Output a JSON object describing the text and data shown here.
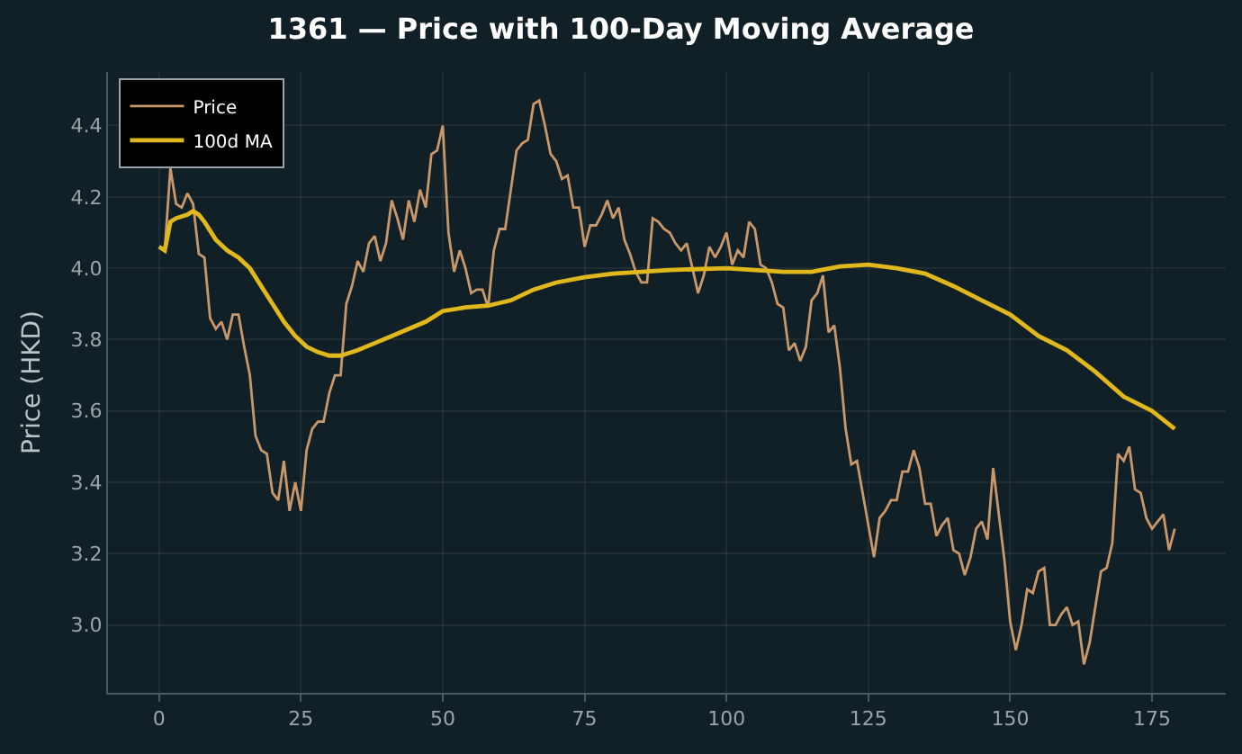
{
  "chart_data": {
    "type": "line",
    "title": "1361 — Price with 100-Day Moving Average",
    "ylabel": "Price (HKD)",
    "xlim": [
      -9,
      188
    ],
    "ylim": [
      2.81,
      4.55
    ],
    "xticks": [
      0,
      25,
      50,
      75,
      100,
      125,
      150,
      175
    ],
    "yticks": [
      {
        "value": 3.0,
        "label": "3.0"
      },
      {
        "value": 3.2,
        "label": "3.2"
      },
      {
        "value": 3.4,
        "label": "3.4"
      },
      {
        "value": 3.6,
        "label": "3.6"
      },
      {
        "value": 3.8,
        "label": "3.8"
      },
      {
        "value": 4.0,
        "label": "4.0"
      },
      {
        "value": 4.2,
        "label": "4.2"
      },
      {
        "value": 4.4,
        "label": "4.4"
      }
    ],
    "grid": true,
    "legend": "top left",
    "marker": "none",
    "line_style": "solid",
    "series": [
      {
        "name": "Price",
        "color": "#c8986a",
        "x": [
          0,
          1,
          2,
          3,
          4,
          5,
          6,
          7,
          8,
          9,
          10,
          11,
          12,
          13,
          14,
          15,
          16,
          17,
          18,
          19,
          20,
          21,
          22,
          23,
          24,
          25,
          26,
          27,
          28,
          29,
          30,
          31,
          32,
          33,
          34,
          35,
          36,
          37,
          38,
          39,
          40,
          41,
          42,
          43,
          44,
          45,
          46,
          47,
          48,
          49,
          50,
          51,
          52,
          53,
          54,
          55,
          56,
          57,
          58,
          59,
          60,
          61,
          62,
          63,
          64,
          65,
          66,
          67,
          68,
          69,
          70,
          71,
          72,
          73,
          74,
          75,
          76,
          77,
          78,
          79,
          80,
          81,
          82,
          83,
          84,
          85,
          86,
          87,
          88,
          89,
          90,
          91,
          92,
          93,
          94,
          95,
          96,
          97,
          98,
          99,
          100,
          101,
          102,
          103,
          104,
          105,
          106,
          107,
          108,
          109,
          110,
          111,
          112,
          113,
          114,
          115,
          116,
          117,
          118,
          119,
          120,
          121,
          122,
          123,
          124,
          125,
          126,
          127,
          128,
          129,
          130,
          131,
          132,
          133,
          134,
          135,
          136,
          137,
          138,
          139,
          140,
          141,
          142,
          143,
          144,
          145,
          146,
          147,
          148,
          149,
          150,
          151,
          152,
          153,
          154,
          155,
          156,
          157,
          158,
          159,
          160,
          161,
          162,
          163,
          164,
          165,
          166,
          167,
          168,
          169,
          170,
          171,
          172,
          173,
          174,
          175,
          176,
          177,
          178,
          179
        ],
        "values": [
          4.06,
          4.05,
          4.28,
          4.18,
          4.17,
          4.21,
          4.18,
          4.04,
          4.03,
          3.86,
          3.83,
          3.85,
          3.8,
          3.87,
          3.87,
          3.78,
          3.7,
          3.53,
          3.49,
          3.48,
          3.37,
          3.35,
          3.46,
          3.32,
          3.4,
          3.32,
          3.49,
          3.55,
          3.57,
          3.57,
          3.65,
          3.7,
          3.7,
          3.9,
          3.95,
          4.02,
          3.99,
          4.07,
          4.09,
          4.02,
          4.07,
          4.19,
          4.14,
          4.08,
          4.19,
          4.13,
          4.22,
          4.17,
          4.32,
          4.33,
          4.4,
          4.1,
          3.99,
          4.05,
          4.0,
          3.93,
          3.94,
          3.94,
          3.89,
          4.05,
          4.11,
          4.11,
          4.22,
          4.33,
          4.35,
          4.36,
          4.46,
          4.47,
          4.4,
          4.32,
          4.3,
          4.25,
          4.26,
          4.17,
          4.17,
          4.06,
          4.12,
          4.12,
          4.15,
          4.19,
          4.14,
          4.17,
          4.08,
          4.04,
          3.99,
          3.96,
          3.96,
          4.14,
          4.13,
          4.11,
          4.1,
          4.07,
          4.05,
          4.07,
          4.0,
          3.93,
          3.98,
          4.06,
          4.03,
          4.06,
          4.1,
          4.01,
          4.05,
          4.03,
          4.13,
          4.11,
          4.01,
          4.0,
          3.96,
          3.9,
          3.89,
          3.77,
          3.79,
          3.74,
          3.78,
          3.91,
          3.93,
          3.98,
          3.82,
          3.84,
          3.72,
          3.55,
          3.45,
          3.46,
          3.37,
          3.28,
          3.19,
          3.3,
          3.32,
          3.35,
          3.35,
          3.43,
          3.43,
          3.49,
          3.44,
          3.34,
          3.34,
          3.25,
          3.28,
          3.3,
          3.21,
          3.2,
          3.14,
          3.19,
          3.27,
          3.29,
          3.24,
          3.44,
          3.31,
          3.18,
          3.01,
          2.93,
          3.0,
          3.1,
          3.09,
          3.15,
          3.16,
          3.0,
          3.0,
          3.03,
          3.05,
          3.0,
          3.01,
          2.89,
          2.95,
          3.05,
          3.15,
          3.16,
          3.23,
          3.48,
          3.46,
          3.5,
          3.38,
          3.37,
          3.3,
          3.27,
          3.29,
          3.31,
          3.21,
          3.27
        ]
      },
      {
        "name": "100d MA",
        "color": "#e0b81c",
        "x": [
          0,
          1,
          2,
          3,
          5,
          6,
          7,
          8,
          10,
          12,
          14,
          16,
          18,
          20,
          22,
          24,
          26,
          28,
          30,
          32,
          35,
          38,
          41,
          44,
          47,
          50,
          54,
          58,
          62,
          66,
          70,
          75,
          80,
          85,
          90,
          100,
          105,
          110,
          115,
          120,
          125,
          130,
          135,
          140,
          145,
          150,
          155,
          160,
          165,
          170,
          175,
          179
        ],
        "values": [
          4.06,
          4.05,
          4.13,
          4.14,
          4.15,
          4.16,
          4.15,
          4.13,
          4.08,
          4.05,
          4.03,
          4.0,
          3.95,
          3.9,
          3.85,
          3.81,
          3.78,
          3.765,
          3.755,
          3.755,
          3.77,
          3.79,
          3.81,
          3.83,
          3.85,
          3.88,
          3.89,
          3.895,
          3.91,
          3.94,
          3.96,
          3.975,
          3.985,
          3.99,
          3.995,
          4.0,
          3.995,
          3.99,
          3.99,
          4.005,
          4.01,
          4.0,
          3.985,
          3.95,
          3.91,
          3.87,
          3.81,
          3.77,
          3.71,
          3.64,
          3.6,
          3.55
        ]
      }
    ]
  }
}
